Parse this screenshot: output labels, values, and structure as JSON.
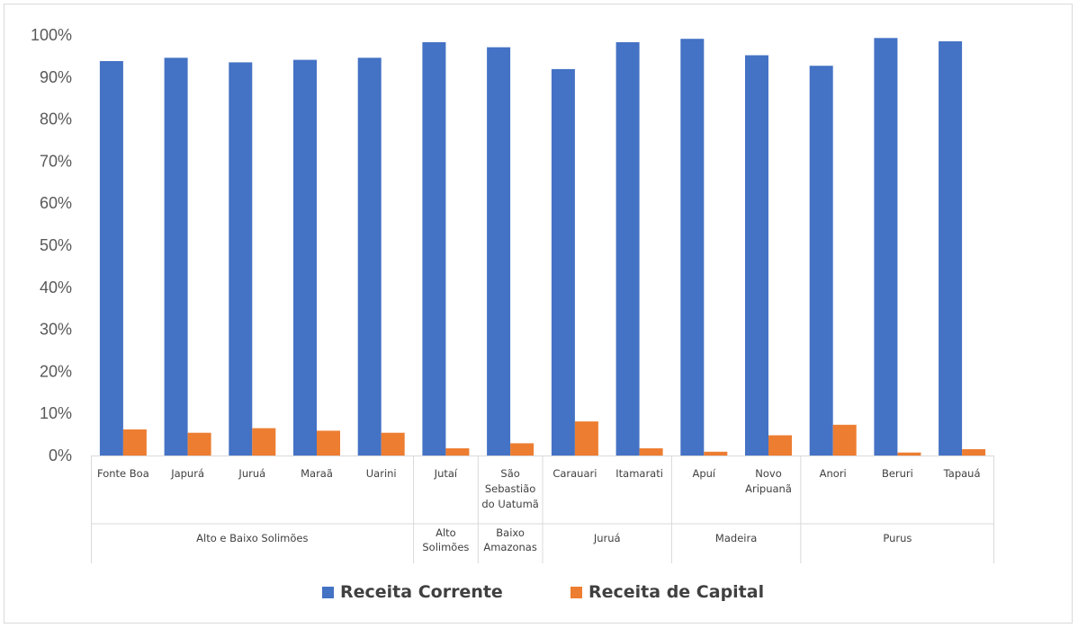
{
  "chart_data": {
    "type": "bar",
    "title": "",
    "xlabel": "",
    "ylabel": "",
    "ylim": [
      0,
      1
    ],
    "y_ticks": [
      "0%",
      "10%",
      "20%",
      "30%",
      "40%",
      "50%",
      "60%",
      "70%",
      "80%",
      "90%",
      "100%"
    ],
    "grid": false,
    "legend_position": "bottom",
    "categories": [
      {
        "label": "Fonte Boa",
        "lines": [
          "Fonte Boa"
        ]
      },
      {
        "label": "Japurá",
        "lines": [
          "Japurá"
        ]
      },
      {
        "label": "Juruá",
        "lines": [
          "Juruá"
        ]
      },
      {
        "label": "Maraã",
        "lines": [
          "Maraã"
        ]
      },
      {
        "label": "Uarini",
        "lines": [
          "Uarini"
        ]
      },
      {
        "label": "Jutaí",
        "lines": [
          "Jutaí"
        ]
      },
      {
        "label": "São Sebastião do Uatumã",
        "lines": [
          "São",
          "Sebastião",
          "do Uatumã"
        ]
      },
      {
        "label": "Carauari",
        "lines": [
          "Carauari"
        ]
      },
      {
        "label": "Itamarati",
        "lines": [
          "Itamarati"
        ]
      },
      {
        "label": "Apuí",
        "lines": [
          "Apuí"
        ]
      },
      {
        "label": "Novo Aripuanã",
        "lines": [
          "Novo",
          "Aripuanã"
        ]
      },
      {
        "label": "Anori",
        "lines": [
          "Anori"
        ]
      },
      {
        "label": "Beruri",
        "lines": [
          "Beruri"
        ]
      },
      {
        "label": "Tapauá",
        "lines": [
          "Tapauá"
        ]
      }
    ],
    "groups": [
      {
        "label": "Alto e Baixo Solimões",
        "lines": [
          "Alto e Baixo Solimões"
        ],
        "start": 0,
        "count": 5
      },
      {
        "label": "Alto Solimões",
        "lines": [
          "Alto",
          "Solimões"
        ],
        "start": 5,
        "count": 1
      },
      {
        "label": "Baixo Amazonas",
        "lines": [
          "Baixo",
          "Amazonas"
        ],
        "start": 6,
        "count": 1
      },
      {
        "label": "Juruá",
        "lines": [
          "Juruá"
        ],
        "start": 7,
        "count": 2
      },
      {
        "label": "Madeira",
        "lines": [
          "Madeira"
        ],
        "start": 9,
        "count": 2
      },
      {
        "label": "Purus",
        "lines": [
          "Purus"
        ],
        "start": 11,
        "count": 3
      }
    ],
    "series": [
      {
        "name": "Receita Corrente",
        "color": "#4472c4",
        "values": [
          0.938,
          0.946,
          0.935,
          0.941,
          0.946,
          0.983,
          0.971,
          0.919,
          0.983,
          0.991,
          0.952,
          0.927,
          0.993,
          0.985
        ]
      },
      {
        "name": "Receita de Capital",
        "color": "#ed7d31",
        "values": [
          0.062,
          0.054,
          0.065,
          0.059,
          0.054,
          0.017,
          0.029,
          0.081,
          0.017,
          0.009,
          0.048,
          0.073,
          0.007,
          0.015
        ]
      }
    ]
  }
}
